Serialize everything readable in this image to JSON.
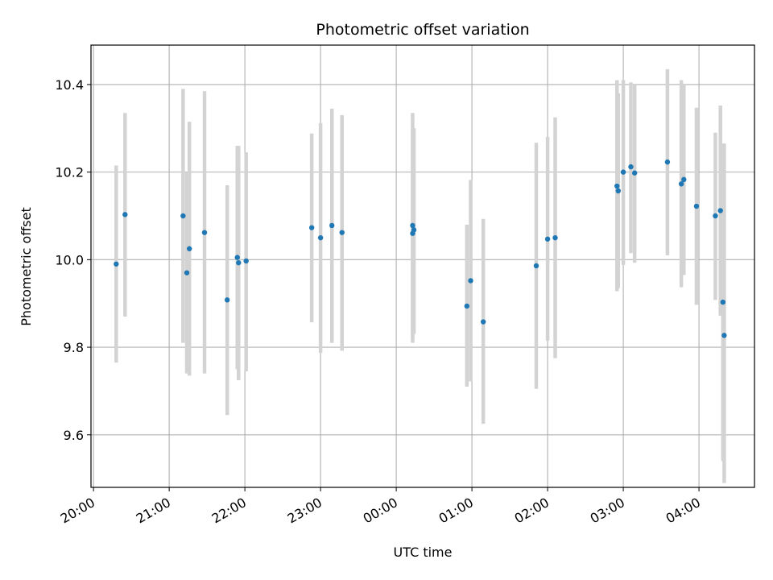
{
  "chart_data": {
    "type": "scatter",
    "title": "Photometric offset variation",
    "xlabel": "UTC time",
    "ylabel": "Photometric offset",
    "x_type": "time",
    "x_ticks": [
      "20:00",
      "21:00",
      "22:00",
      "23:00",
      "00:00",
      "01:00",
      "02:00",
      "03:00",
      "04:00"
    ],
    "xlim": [
      "19:58",
      "04:44"
    ],
    "ylim": [
      9.48,
      10.49
    ],
    "y_ticks": [
      9.6,
      9.8,
      10.0,
      10.2,
      10.4
    ],
    "y_tick_labels": [
      "9.6",
      "9.8",
      "10.0",
      "10.2",
      "10.4"
    ],
    "grid": true,
    "colors": {
      "point": "#1f77b4",
      "errorbar": "#d3d3d3",
      "grid": "#b0b0b0"
    },
    "series": [
      {
        "points": [
          {
            "t": "20:18",
            "y": 9.99,
            "lo": 9.765,
            "hi": 10.215
          },
          {
            "t": "20:25",
            "y": 10.103,
            "lo": 9.87,
            "hi": 10.335
          },
          {
            "t": "21:11",
            "y": 10.1,
            "lo": 9.81,
            "hi": 10.39
          },
          {
            "t": "21:14",
            "y": 9.97,
            "lo": 9.74,
            "hi": 10.2
          },
          {
            "t": "21:16",
            "y": 10.025,
            "lo": 9.735,
            "hi": 10.315
          },
          {
            "t": "21:28",
            "y": 10.062,
            "lo": 9.74,
            "hi": 10.385
          },
          {
            "t": "21:46",
            "y": 9.908,
            "lo": 9.645,
            "hi": 10.17
          },
          {
            "t": "21:54",
            "y": 10.005,
            "lo": 9.75,
            "hi": 10.26
          },
          {
            "t": "21:55",
            "y": 9.993,
            "lo": 9.725,
            "hi": 10.26
          },
          {
            "t": "22:01",
            "y": 9.997,
            "lo": 9.745,
            "hi": 10.245
          },
          {
            "t": "22:53",
            "y": 10.073,
            "lo": 9.857,
            "hi": 10.288
          },
          {
            "t": "23:00",
            "y": 10.05,
            "lo": 9.787,
            "hi": 10.312
          },
          {
            "t": "23:09",
            "y": 10.078,
            "lo": 9.81,
            "hi": 10.345
          },
          {
            "t": "23:17",
            "y": 10.062,
            "lo": 9.792,
            "hi": 10.33
          },
          {
            "t": "00:13",
            "y": 10.078,
            "lo": 9.82,
            "hi": 10.335
          },
          {
            "t": "00:13",
            "y": 10.06,
            "lo": 9.81,
            "hi": 10.3
          },
          {
            "t": "00:14",
            "y": 10.068,
            "lo": 9.83,
            "hi": 10.3
          },
          {
            "t": "00:56",
            "y": 9.894,
            "lo": 9.71,
            "hi": 10.08
          },
          {
            "t": "00:59",
            "y": 9.952,
            "lo": 9.722,
            "hi": 10.182
          },
          {
            "t": "01:09",
            "y": 9.858,
            "lo": 9.625,
            "hi": 10.093
          },
          {
            "t": "01:51",
            "y": 9.986,
            "lo": 9.705,
            "hi": 10.267
          },
          {
            "t": "02:00",
            "y": 10.047,
            "lo": 9.815,
            "hi": 10.28
          },
          {
            "t": "02:06",
            "y": 10.05,
            "lo": 9.775,
            "hi": 10.325
          },
          {
            "t": "02:55",
            "y": 10.168,
            "lo": 9.928,
            "hi": 10.41
          },
          {
            "t": "02:56",
            "y": 10.157,
            "lo": 9.935,
            "hi": 10.38
          },
          {
            "t": "03:00",
            "y": 10.2,
            "lo": 9.988,
            "hi": 10.41
          },
          {
            "t": "03:06",
            "y": 10.212,
            "lo": 10.015,
            "hi": 10.405
          },
          {
            "t": "03:09",
            "y": 10.198,
            "lo": 9.993,
            "hi": 10.4
          },
          {
            "t": "03:35",
            "y": 10.223,
            "lo": 10.01,
            "hi": 10.435
          },
          {
            "t": "03:46",
            "y": 10.173,
            "lo": 9.937,
            "hi": 10.41
          },
          {
            "t": "03:48",
            "y": 10.183,
            "lo": 9.965,
            "hi": 10.4
          },
          {
            "t": "03:58",
            "y": 10.122,
            "lo": 9.897,
            "hi": 10.347
          },
          {
            "t": "04:13",
            "y": 10.1,
            "lo": 9.908,
            "hi": 10.29
          },
          {
            "t": "04:17",
            "y": 10.112,
            "lo": 9.872,
            "hi": 10.352
          },
          {
            "t": "04:19",
            "y": 9.903,
            "lo": 9.54,
            "hi": 10.265
          },
          {
            "t": "04:20",
            "y": 9.827,
            "lo": 9.49,
            "hi": 10.265
          }
        ]
      }
    ]
  }
}
